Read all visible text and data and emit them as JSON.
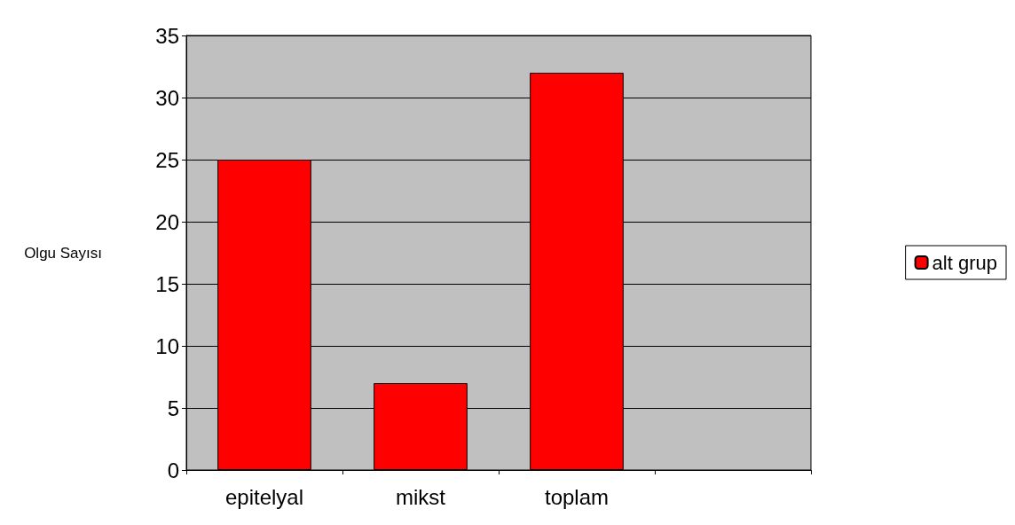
{
  "chart_data": {
    "type": "bar",
    "ylabel": "Olgu Sayısı",
    "categories": [
      "epitelyal",
      "mikst",
      "toplam",
      null
    ],
    "series": [
      {
        "name": "alt grup",
        "color": "#ff0000",
        "values": [
          25,
          7,
          32,
          null
        ]
      }
    ],
    "ylim": [
      0,
      35
    ],
    "yticks": [
      0,
      5,
      10,
      15,
      20,
      25,
      30,
      35
    ],
    "grid": "y",
    "legend": "right"
  }
}
